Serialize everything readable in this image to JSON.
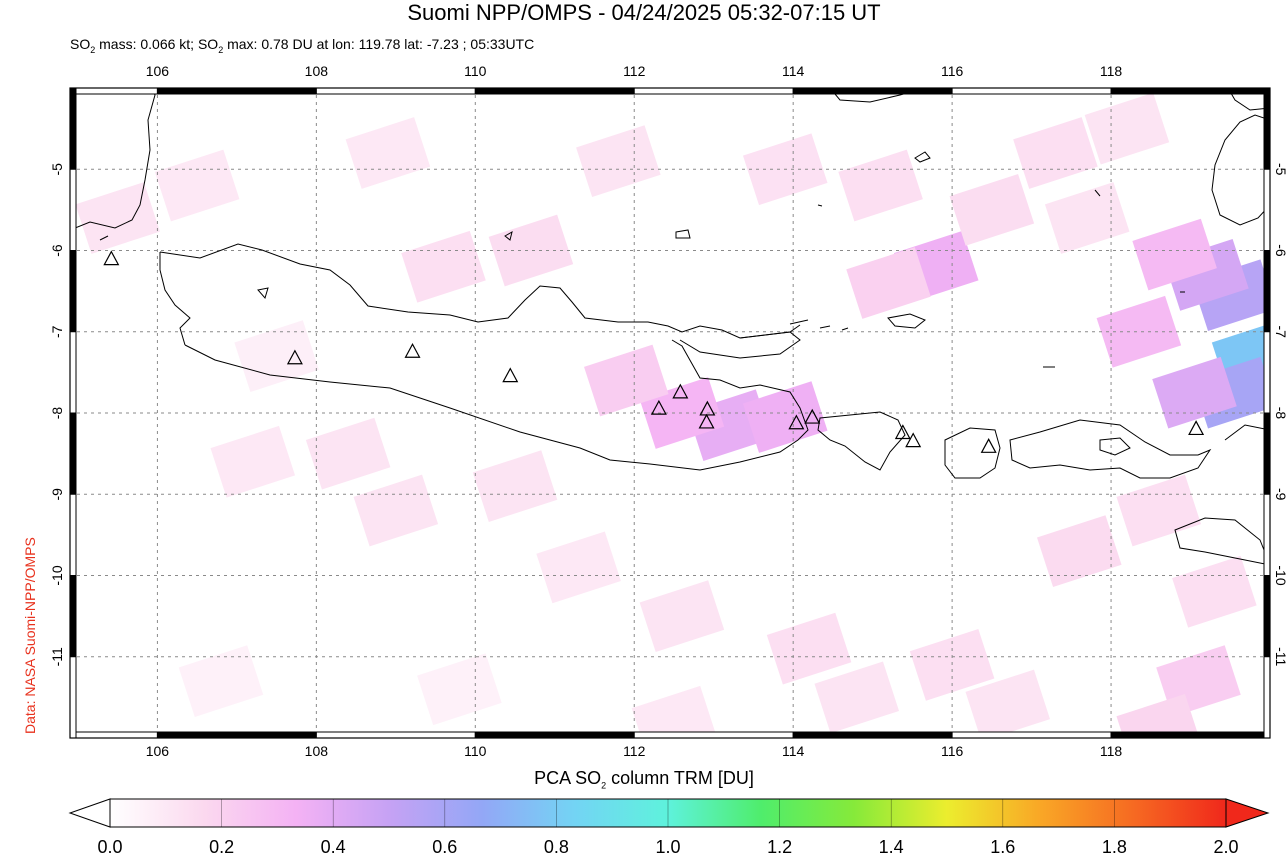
{
  "header": {
    "title": "Suomi NPP/OMPS - 04/24/2025 05:32-07:15 UT",
    "subtitle_parts": [
      "SO",
      "2",
      " mass: 0.066 kt; SO",
      "2",
      " max: 0.78 DU at lon: 119.78 lat: -7.23 ; 05:33UTC"
    ]
  },
  "credit": "Data: NASA Suomi-NPP/OMPS",
  "map": {
    "lon_ticks": [
      "106",
      "108",
      "110",
      "112",
      "114",
      "116",
      "118"
    ],
    "lat_ticks": [
      "-5",
      "-6",
      "-7",
      "-8",
      "-9",
      "-10",
      "-11"
    ],
    "lon_range": [
      104.9,
      120.0
    ],
    "lat_range": [
      -12.0,
      -4.0
    ],
    "grid": true,
    "volcano_marker": "triangle-icon",
    "volcanoes": [
      {
        "lon": 105.42,
        "lat": -6.1
      },
      {
        "lon": 107.73,
        "lat": -7.32
      },
      {
        "lon": 109.21,
        "lat": -7.24
      },
      {
        "lon": 110.44,
        "lat": -7.54
      },
      {
        "lon": 112.31,
        "lat": -7.94
      },
      {
        "lon": 112.58,
        "lat": -7.74
      },
      {
        "lon": 112.92,
        "lat": -7.95
      },
      {
        "lon": 112.91,
        "lat": -8.11
      },
      {
        "lon": 114.04,
        "lat": -8.12
      },
      {
        "lon": 114.24,
        "lat": -8.05
      },
      {
        "lon": 115.38,
        "lat": -8.24
      },
      {
        "lon": 115.51,
        "lat": -8.34
      },
      {
        "lon": 116.46,
        "lat": -8.41
      },
      {
        "lon": 119.07,
        "lat": -8.19
      }
    ],
    "so2_pixels": [
      {
        "lon": 119.55,
        "lat": -6.55,
        "du": 0.55
      },
      {
        "lon": 119.8,
        "lat": -7.3,
        "du": 0.78
      },
      {
        "lon": 119.55,
        "lat": -7.75,
        "du": 0.6
      },
      {
        "lon": 119.2,
        "lat": -6.3,
        "du": 0.45
      },
      {
        "lon": 119.05,
        "lat": -7.75,
        "du": 0.42
      },
      {
        "lon": 118.8,
        "lat": -6.05,
        "du": 0.3
      },
      {
        "lon": 118.35,
        "lat": -7.0,
        "du": 0.3
      },
      {
        "lon": 113.2,
        "lat": -8.15,
        "du": 0.38
      },
      {
        "lon": 112.6,
        "lat": -8.0,
        "du": 0.32
      },
      {
        "lon": 113.9,
        "lat": -8.05,
        "du": 0.35
      },
      {
        "lon": 115.8,
        "lat": -6.2,
        "du": 0.35
      },
      {
        "lon": 115.2,
        "lat": -6.4,
        "du": 0.2
      },
      {
        "lon": 111.9,
        "lat": -7.6,
        "du": 0.22
      },
      {
        "lon": 110.7,
        "lat": -6.0,
        "du": 0.15
      },
      {
        "lon": 109.6,
        "lat": -6.2,
        "du": 0.14
      },
      {
        "lon": 106.5,
        "lat": -5.2,
        "du": 0.1
      },
      {
        "lon": 108.9,
        "lat": -4.8,
        "du": 0.1
      },
      {
        "lon": 111.8,
        "lat": -4.9,
        "du": 0.12
      },
      {
        "lon": 113.9,
        "lat": -5.0,
        "du": 0.13
      },
      {
        "lon": 115.1,
        "lat": -5.2,
        "du": 0.14
      },
      {
        "lon": 116.5,
        "lat": -5.5,
        "du": 0.15
      },
      {
        "lon": 117.3,
        "lat": -4.8,
        "du": 0.14
      },
      {
        "lon": 118.2,
        "lat": -4.5,
        "du": 0.12
      },
      {
        "lon": 117.7,
        "lat": -5.6,
        "du": 0.12
      },
      {
        "lon": 105.5,
        "lat": -5.6,
        "du": 0.12
      },
      {
        "lon": 108.4,
        "lat": -8.5,
        "du": 0.12
      },
      {
        "lon": 110.5,
        "lat": -8.9,
        "du": 0.12
      },
      {
        "lon": 107.2,
        "lat": -8.6,
        "du": 0.1
      },
      {
        "lon": 109.0,
        "lat": -9.2,
        "du": 0.12
      },
      {
        "lon": 111.3,
        "lat": -9.9,
        "du": 0.1
      },
      {
        "lon": 112.6,
        "lat": -10.5,
        "du": 0.12
      },
      {
        "lon": 114.2,
        "lat": -10.9,
        "du": 0.14
      },
      {
        "lon": 117.6,
        "lat": -9.7,
        "du": 0.16
      },
      {
        "lon": 118.6,
        "lat": -9.2,
        "du": 0.14
      },
      {
        "lon": 119.3,
        "lat": -10.2,
        "du": 0.14
      },
      {
        "lon": 119.1,
        "lat": -11.3,
        "du": 0.22
      },
      {
        "lon": 118.6,
        "lat": -11.9,
        "du": 0.18
      },
      {
        "lon": 116.0,
        "lat": -11.1,
        "du": 0.14
      },
      {
        "lon": 116.7,
        "lat": -11.6,
        "du": 0.12
      },
      {
        "lon": 106.8,
        "lat": -11.3,
        "du": 0.06
      },
      {
        "lon": 109.8,
        "lat": -11.4,
        "du": 0.06
      },
      {
        "lon": 107.5,
        "lat": -7.3,
        "du": 0.07
      },
      {
        "lon": 112.5,
        "lat": -11.8,
        "du": 0.1
      },
      {
        "lon": 114.8,
        "lat": -11.5,
        "du": 0.12
      }
    ]
  },
  "colorbar": {
    "title_parts": [
      "PCA SO",
      "2",
      " column TRM [DU]"
    ],
    "tick_labels": [
      "0.0",
      "0.2",
      "0.4",
      "0.6",
      "0.8",
      "1.0",
      "1.2",
      "1.4",
      "1.6",
      "1.8",
      "2.0"
    ],
    "range": [
      0.0,
      2.0
    ],
    "stops": [
      "#ffffff",
      "#fbd9ef",
      "#f4b2f4",
      "#c6a2f4",
      "#93a7f6",
      "#73d4f4",
      "#5ef2dc",
      "#4fed6c",
      "#86ea3a",
      "#eced2e",
      "#f9a726",
      "#f66a22",
      "#f0281b"
    ]
  }
}
